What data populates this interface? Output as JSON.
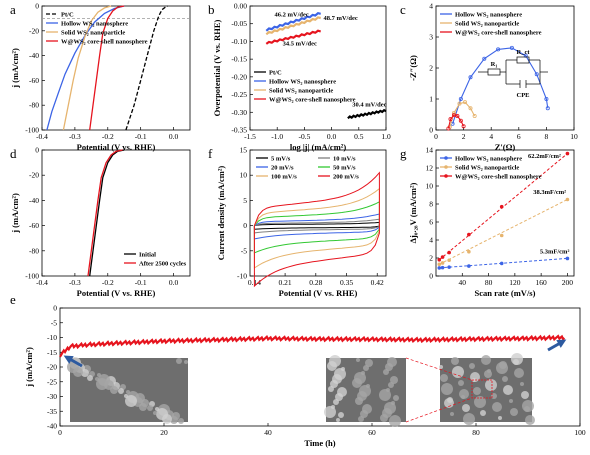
{
  "colors": {
    "ptc": "#000000",
    "hollow": "#3c64e6",
    "solid": "#e6b46e",
    "core": "#e6141e",
    "hollowLight": "#6fa0e6",
    "solidLight": "#f0c89a"
  },
  "chart_data": [
    {
      "id": "a",
      "type": "line",
      "letter": "a",
      "xlabel": "Potential (V vs. RHE)",
      "ylabel": "j (mA/cm²)",
      "xlim": [
        -0.4,
        0.05
      ],
      "ylim": [
        -100,
        0
      ],
      "xticks": [
        "-0.4",
        "-0.3",
        "-0.2",
        "-0.1",
        "0.0"
      ],
      "yticks": [
        "0",
        "-20",
        "-40",
        "-60",
        "-80",
        "-100"
      ],
      "legend": [
        "Pt/C",
        "Hollow WS₂ nanosphere",
        "Solid WS₂ nanoparticle",
        "W@WS₂ core-shell nanosphere"
      ],
      "series": [
        {
          "name": "Pt/C",
          "color": "ptc",
          "dash": "4,2",
          "x": [
            -0.145,
            -0.12,
            -0.1,
            -0.08,
            -0.06,
            -0.045,
            -0.035,
            -0.025,
            -0.018
          ],
          "y": [
            -100,
            -80,
            -60,
            -40,
            -20,
            -8,
            -3,
            -1,
            0
          ]
        },
        {
          "name": "Hollow WS₂ nanosphere",
          "color": "hollow",
          "x": [
            -0.385,
            -0.37,
            -0.35,
            -0.33,
            -0.3,
            -0.27,
            -0.24,
            -0.21,
            -0.18,
            -0.15
          ],
          "y": [
            -100,
            -85,
            -70,
            -55,
            -38,
            -24,
            -13,
            -6,
            -2,
            0
          ]
        },
        {
          "name": "Solid WS₂ nanoparticle",
          "color": "solid",
          "x": [
            -0.335,
            -0.32,
            -0.305,
            -0.29,
            -0.27,
            -0.25,
            -0.23,
            -0.21,
            -0.19
          ],
          "y": [
            -100,
            -80,
            -60,
            -42,
            -25,
            -12,
            -5,
            -1.5,
            0
          ]
        },
        {
          "name": "W@WS₂ core-shell nanosphere",
          "color": "core",
          "x": [
            -0.255,
            -0.245,
            -0.235,
            -0.225,
            -0.215,
            -0.2,
            -0.185,
            -0.17,
            -0.15
          ],
          "y": [
            -100,
            -80,
            -60,
            -40,
            -22,
            -10,
            -4,
            -1,
            0
          ]
        }
      ]
    },
    {
      "id": "b",
      "type": "line",
      "letter": "b",
      "xlabel": "log |j| (mA/cm²)",
      "ylabel": "Overpotential (V vs. RHE)",
      "xlim": [
        -1.5,
        1.0
      ],
      "ylim": [
        -0.35,
        0.0
      ],
      "xticks": [
        "-1.5",
        "-1.0",
        "-0.5",
        "0.0",
        "0.5",
        "1.0"
      ],
      "yticks": [
        "0.00",
        "-0.05",
        "-0.10",
        "-0.15",
        "-0.20",
        "-0.25",
        "-0.30",
        "-0.35"
      ],
      "legend": [
        "Pt/C",
        "Hollow WS₂ nanosphere",
        "Solid WS₂ nanoparticle",
        "W@WS₂ core-shell nanosphere"
      ],
      "series": [
        {
          "name": "Pt/C",
          "color": "ptc",
          "x": [
            0.3,
            1.0
          ],
          "y": [
            -0.315,
            -0.295
          ]
        },
        {
          "name": "Hollow WS₂ nanosphere",
          "color": "hollow",
          "x": [
            -1.2,
            -0.2
          ],
          "y": [
            -0.068,
            -0.02
          ]
        },
        {
          "name": "Solid WS₂ nanoparticle",
          "color": "solid",
          "x": [
            -1.2,
            -0.2
          ],
          "y": [
            -0.078,
            -0.032
          ]
        },
        {
          "name": "W@WS₂ core-shell nanosphere",
          "color": "core",
          "x": [
            -1.2,
            -0.2
          ],
          "y": [
            -0.105,
            -0.07
          ]
        }
      ],
      "annotations": [
        {
          "text": "46.2 mV/dec",
          "x": -1.05,
          "y": -0.03,
          "color": "solid"
        },
        {
          "text": "48.7 mV/dec",
          "x": -0.15,
          "y": -0.04,
          "color": "hollow"
        },
        {
          "text": "34.5 mV/dec",
          "x": -0.9,
          "y": -0.112,
          "color": "core"
        },
        {
          "text": "30.4 mV/dec",
          "x": 0.38,
          "y": -0.283,
          "color": "ptc"
        }
      ]
    },
    {
      "id": "c",
      "type": "line",
      "letter": "c",
      "xlabel": "Z′(Ω)",
      "ylabel": "-Z″(Ω)",
      "xlim": [
        0,
        10
      ],
      "ylim": [
        0,
        4
      ],
      "xticks": [
        "0",
        "2",
        "4",
        "6",
        "8",
        "10"
      ],
      "yticks": [
        "0",
        "1",
        "2",
        "3",
        "4"
      ],
      "legend": [
        "Hollow WS₂ nanosphere",
        "Solid WS₂ nanoparticle",
        "W@WS₂ core-shell nanosphere"
      ],
      "circuit": {
        "r1": "R₁",
        "rct": "R_ct",
        "cpe": "CPE"
      },
      "series": [
        {
          "name": "Hollow WS₂ nanosphere",
          "color": "hollow",
          "x": [
            1.2,
            1.8,
            2.5,
            3.5,
            4.5,
            5.5,
            6.5,
            7.3,
            8.0,
            8.1
          ],
          "y": [
            0.2,
            1.0,
            1.7,
            2.3,
            2.6,
            2.65,
            2.4,
            1.8,
            1.0,
            0.7
          ]
        },
        {
          "name": "Solid WS₂ nanoparticle",
          "color": "solid",
          "x": [
            1.0,
            1.3,
            1.7,
            2.1,
            2.5,
            2.8
          ],
          "y": [
            0.1,
            0.55,
            0.85,
            0.9,
            0.7,
            0.45
          ]
        },
        {
          "name": "W@WS₂ core-shell nanosphere",
          "color": "core",
          "x": [
            0.9,
            1.05,
            1.3,
            1.55,
            1.8,
            2.0
          ],
          "y": [
            0.05,
            0.35,
            0.48,
            0.45,
            0.3,
            0.12
          ]
        }
      ]
    },
    {
      "id": "d",
      "type": "line",
      "letter": "d",
      "xlabel": "Potential (V vs. RHE)",
      "ylabel": "j (mA/cm²)",
      "xlim": [
        -0.4,
        0.05
      ],
      "ylim": [
        -100,
        0
      ],
      "xticks": [
        "-0.4",
        "-0.3",
        "-0.2",
        "-0.1",
        "0.0"
      ],
      "yticks": [
        "0",
        "-20",
        "-40",
        "-60",
        "-80",
        "-100"
      ],
      "legend": [
        "Initial",
        "After 2500 cycles"
      ],
      "series": [
        {
          "name": "Initial",
          "color": "ptc",
          "x": [
            -0.255,
            -0.245,
            -0.235,
            -0.225,
            -0.215,
            -0.2,
            -0.185,
            -0.17,
            -0.15
          ],
          "y": [
            -100,
            -80,
            -60,
            -40,
            -22,
            -10,
            -4,
            -1,
            0
          ]
        },
        {
          "name": "After 2500 cycles",
          "color": "core",
          "x": [
            -0.26,
            -0.25,
            -0.24,
            -0.23,
            -0.22,
            -0.205,
            -0.19,
            -0.175,
            -0.155
          ],
          "y": [
            -100,
            -80,
            -60,
            -40,
            -22,
            -10,
            -4,
            -1,
            0
          ]
        }
      ]
    },
    {
      "id": "f",
      "type": "line",
      "letter": "f",
      "xlabel": "Potential (V vs. RHE)",
      "ylabel": "Current density (mA/cm²)",
      "xlim": [
        0.13,
        0.44
      ],
      "ylim": [
        -10,
        15
      ],
      "xticks": [
        "0.14",
        "0.21",
        "0.28",
        "0.35",
        "0.42"
      ],
      "yticks": [
        "15",
        "10",
        "5",
        "0",
        "-5",
        "-10"
      ],
      "legend": [
        "5 mV/s",
        "10 mV/s",
        "20 mV/s",
        "50 mV/s",
        "100 mV/s",
        "200 mV/s"
      ],
      "legendColors": [
        "#000000",
        "#808080",
        "#3c64e6",
        "#32c832",
        "#e6b46e",
        "#e6141e"
      ],
      "cv": [
        0.6,
        1.2,
        2.2,
        4.5,
        7.0,
        10.0
      ]
    },
    {
      "id": "g",
      "type": "scatter",
      "letter": "g",
      "xlabel": "Scan rate (mV/s)",
      "ylabel": "Δj₀.₂₈V (mA/cm²)",
      "xlim": [
        0,
        210
      ],
      "ylim": [
        0,
        14
      ],
      "xticks": [
        "40",
        "80",
        "120",
        "160",
        "200"
      ],
      "yticks": [
        "0",
        "2",
        "4",
        "6",
        "8",
        "10",
        "12",
        "14"
      ],
      "legend": [
        "Hollow WS₂ nanosphere",
        "Solid WS₂ nanoparticle",
        "W@WS₂ core-shell nanosphere"
      ],
      "series": [
        {
          "name": "Hollow WS₂ nanosphere",
          "color": "hollow",
          "x": [
            5,
            10,
            20,
            50,
            100,
            200
          ],
          "y": [
            0.9,
            0.93,
            0.98,
            1.1,
            1.4,
            1.95
          ]
        },
        {
          "name": "Solid WS₂ nanoparticle",
          "color": "solid",
          "x": [
            5,
            10,
            20,
            50,
            100,
            200
          ],
          "y": [
            1.3,
            1.45,
            1.75,
            2.7,
            4.5,
            8.5
          ]
        },
        {
          "name": "W@WS₂ core-shell nanosphere",
          "color": "core",
          "x": [
            5,
            10,
            20,
            50,
            100,
            200
          ],
          "y": [
            1.8,
            2.1,
            2.6,
            4.6,
            7.7,
            13.6
          ]
        }
      ],
      "annotations": [
        {
          "text": "62.2mF/cm²",
          "x": 140,
          "y": 13.1,
          "color": "core"
        },
        {
          "text": "38.3mF/cm²",
          "x": 148,
          "y": 9.1,
          "color": "solid"
        },
        {
          "text": "5.3mF/cm²",
          "x": 158,
          "y": 2.5,
          "color": "hollow"
        }
      ]
    },
    {
      "id": "e",
      "type": "line",
      "letter": "e",
      "xlabel": "Time (h)",
      "ylabel": "j (mA/cm²)",
      "xlim": [
        0,
        100
      ],
      "ylim": [
        -40,
        0
      ],
      "xticks": [
        "0",
        "20",
        "40",
        "60",
        "80",
        "100"
      ],
      "yticks": [
        "0",
        "-5",
        "-10",
        "-15",
        "-20",
        "-25",
        "-30",
        "-35",
        "-40"
      ],
      "series": [
        {
          "name": "",
          "color": "core",
          "x": [
            0,
            2,
            5,
            10,
            15,
            20,
            30,
            40,
            50,
            60,
            70,
            80,
            90,
            97
          ],
          "y": [
            -16,
            -13,
            -12.5,
            -12,
            -11.6,
            -11.2,
            -10.8,
            -10.3,
            -10.5,
            -10.6,
            -10.8,
            -10.5,
            -10.3,
            -10
          ]
        }
      ]
    }
  ]
}
